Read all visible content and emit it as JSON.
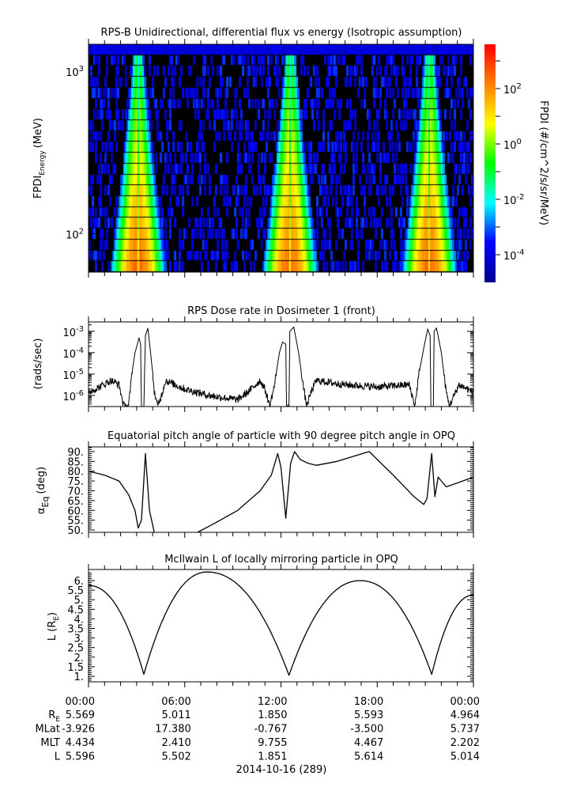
{
  "chart_data": [
    {
      "type": "heatmap",
      "title": "RPS-B  Unidirectional, differential flux vs energy (Isotropic assumption)",
      "ylabel_main": "FPDI",
      "ylabel_sub": "Energy",
      "ylabel_unit": "(MeV)",
      "yscale": "log",
      "ylim": [
        58,
        1460
      ],
      "yticks": [
        {
          "v": 100,
          "base": "10",
          "exp": "2"
        },
        {
          "v": 1000,
          "base": "10",
          "exp": "3"
        }
      ],
      "xlim_hours": [
        0,
        24
      ],
      "bright_band_hours": [
        3.1,
        12.6,
        21.3
      ],
      "colorbar": {
        "label": "FPDI (#/cm^2/s/sr/MeV)",
        "log_range": [
          -5.0,
          3.6
        ],
        "ticks": [
          {
            "v": -4,
            "base": "10",
            "exp": "-4"
          },
          {
            "v": -2,
            "base": "10",
            "exp": "-2"
          },
          {
            "v": 0,
            "base": "10",
            "exp": "0"
          },
          {
            "v": 2,
            "base": "10",
            "exp": "2"
          }
        ],
        "colors": [
          "#00008f",
          "#0000ff",
          "#00ffff",
          "#00ff00",
          "#ffff00",
          "#ff8000",
          "#ff0000"
        ]
      }
    },
    {
      "type": "line",
      "title": "RPS  Dose rate in Dosimeter 1 (front)",
      "ylabel": "(rads/sec)",
      "yscale": "log",
      "ylim_log10": [
        -6.52,
        -2.56
      ],
      "yticks": [
        {
          "v": -6,
          "base": "10",
          "exp": "-6"
        },
        {
          "v": -5,
          "base": "10",
          "exp": "-5"
        },
        {
          "v": -4,
          "base": "10",
          "exp": "-4"
        },
        {
          "v": -3,
          "base": "10",
          "exp": "-3"
        }
      ],
      "x_hours": [
        0,
        0.7,
        1.4,
        1.9,
        2.2,
        2.5,
        2.7,
        2.9,
        3.15,
        3.25,
        3.3,
        3.45,
        3.55,
        3.7,
        3.9,
        4.1,
        4.3,
        4.55,
        4.8,
        6.0,
        7.5,
        9.3,
        10.0,
        10.7,
        11.0,
        11.3,
        11.6,
        11.9,
        12.1,
        12.3,
        12.35,
        12.5,
        12.55,
        12.8,
        13.1,
        13.4,
        13.6,
        13.9,
        14.2,
        16.0,
        18.0,
        20.0,
        20.35,
        20.6,
        20.9,
        21.15,
        21.3,
        21.35,
        21.5,
        21.55,
        21.7,
        22.0,
        22.3,
        22.5,
        22.8,
        23.1,
        24
      ],
      "values_log10": [
        -5.85,
        -5.6,
        -5.3,
        -5.5,
        -6.5,
        -6.5,
        -5.0,
        -4.0,
        -3.3,
        -3.6,
        -6.6,
        -6.6,
        -3.2,
        -2.85,
        -4.2,
        -5.8,
        -6.5,
        -6.0,
        -5.3,
        -5.7,
        -6.0,
        -6.2,
        -5.8,
        -5.3,
        -5.7,
        -6.5,
        -5.5,
        -4.0,
        -3.5,
        -3.6,
        -6.6,
        -6.6,
        -3.0,
        -2.8,
        -4.0,
        -5.6,
        -6.5,
        -5.8,
        -5.3,
        -5.5,
        -5.6,
        -5.5,
        -6.5,
        -5.0,
        -3.8,
        -2.9,
        -3.2,
        -6.6,
        -6.6,
        -3.0,
        -2.85,
        -4.0,
        -5.8,
        -6.5,
        -6.0,
        -5.5,
        -5.85
      ]
    },
    {
      "type": "line",
      "title": "Equatorial pitch angle of particle with 90 degree pitch angle in OPQ",
      "ylabel_main": "α",
      "ylabel_sub": "Eq",
      "ylabel_unit": "(deg)",
      "ylim": [
        48.8,
        92.4
      ],
      "yticks": [
        "50.",
        "55.",
        "60.",
        "65.",
        "70.",
        "75.",
        "80.",
        "85.",
        "90."
      ],
      "x_hours": [
        0,
        1.0,
        1.9,
        2.5,
        2.9,
        3.1,
        3.3,
        3.55,
        3.8,
        4.1,
        null,
        6.8,
        8.0,
        9.3,
        10.7,
        11.4,
        11.8,
        12.0,
        12.3,
        12.6,
        12.85,
        13.2,
        13.7,
        14.2,
        15.5,
        17.5,
        19.0,
        20.3,
        20.9,
        21.1,
        21.4,
        21.6,
        21.8,
        22.0,
        22.3,
        23.0,
        24
      ],
      "values": [
        80,
        78,
        75,
        68,
        60,
        51,
        55,
        89,
        60,
        48.8,
        null,
        48.8,
        54,
        60,
        70,
        78,
        89,
        82,
        56,
        84,
        90,
        86,
        84,
        83,
        85,
        90,
        78,
        67,
        63,
        66,
        89,
        67,
        77,
        75,
        72,
        74,
        77
      ]
    },
    {
      "type": "line",
      "title": "McIlwain L of locally mirroring particle in OPQ",
      "ylabel_main": "L (R",
      "ylabel_sub": "E",
      "ylabel_unit": ")",
      "ylim": [
        0.71,
        6.58
      ],
      "yticks": [
        "1.",
        "1.5",
        "2.",
        "2.5",
        "3.",
        "3.5",
        "4.",
        "4.5",
        "5.",
        "5.5",
        "6."
      ],
      "minima": [
        {
          "h": 3.45,
          "L": 1.1
        },
        {
          "h": 12.5,
          "L": 1.05
        },
        {
          "h": 21.4,
          "L": 1.1
        }
      ],
      "maxima": [
        {
          "h": 7.4,
          "L": 6.45
        },
        {
          "h": 16.95,
          "L": 6.0
        }
      ],
      "start": {
        "h": 0,
        "L": 5.75
      },
      "end": {
        "h": 24,
        "L": 5.25
      }
    }
  ],
  "xaxis": {
    "tick_labels": [
      "00:00",
      "06:00",
      "12:00",
      "18:00",
      "00:00"
    ],
    "rows": [
      {
        "label": "R",
        "label_sub": "E",
        "values": [
          "5.569",
          "5.011",
          "1.850",
          "5.593",
          "4.964"
        ]
      },
      {
        "label": "MLat",
        "label_sub": "",
        "values": [
          "-3.926",
          "17.380",
          "-0.767",
          "-3.500",
          "5.737"
        ]
      },
      {
        "label": "MLT",
        "label_sub": "",
        "values": [
          "4.434",
          "2.410",
          "9.755",
          "4.467",
          "2.202"
        ]
      },
      {
        "label": "L",
        "label_sub": "",
        "values": [
          "5.596",
          "5.502",
          "1.851",
          "5.614",
          "5.014"
        ]
      }
    ],
    "date": "2014-10-16 (289)"
  }
}
